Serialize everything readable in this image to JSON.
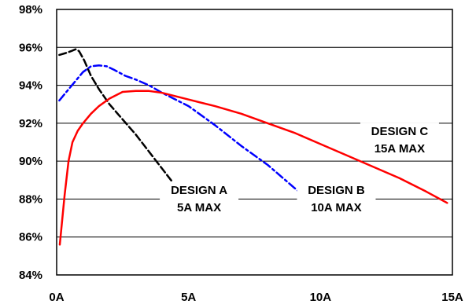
{
  "chart_data": {
    "type": "line",
    "title": "",
    "xlabel": "",
    "ylabel": "",
    "xlim": [
      0,
      15
    ],
    "ylim": [
      84,
      98
    ],
    "x_ticks": [
      0,
      5,
      10,
      15
    ],
    "x_tick_labels": [
      "0A",
      "5A",
      "10A",
      "15A"
    ],
    "y_ticks": [
      84,
      86,
      88,
      90,
      92,
      94,
      96,
      98
    ],
    "y_tick_labels": [
      "84%",
      "86%",
      "88%",
      "90%",
      "92%",
      "94%",
      "96%",
      "98%"
    ],
    "grid": "horizontal",
    "legend": "none",
    "series": [
      {
        "name": "DESIGN A",
        "color": "#000000",
        "style": "dashed",
        "points": [
          [
            0.1,
            95.6
          ],
          [
            0.35,
            95.7
          ],
          [
            0.55,
            95.8
          ],
          [
            0.72,
            95.9
          ],
          [
            0.85,
            95.8
          ],
          [
            1.05,
            95.3
          ],
          [
            1.3,
            94.5
          ],
          [
            1.6,
            93.8
          ],
          [
            2.0,
            93.0
          ],
          [
            2.5,
            92.2
          ],
          [
            3.0,
            91.4
          ],
          [
            3.5,
            90.5
          ],
          [
            4.0,
            89.6
          ],
          [
            4.5,
            88.7
          ],
          [
            4.8,
            88.2
          ],
          [
            5.0,
            88.0
          ]
        ]
      },
      {
        "name": "DESIGN B",
        "color": "#0000FF",
        "style": "dashdot",
        "points": [
          [
            0.1,
            93.2
          ],
          [
            0.4,
            93.7
          ],
          [
            0.7,
            94.2
          ],
          [
            1.0,
            94.7
          ],
          [
            1.3,
            95.0
          ],
          [
            1.6,
            95.05
          ],
          [
            1.9,
            95.0
          ],
          [
            2.2,
            94.8
          ],
          [
            2.6,
            94.5
          ],
          [
            3.0,
            94.3
          ],
          [
            3.5,
            94.0
          ],
          [
            4.0,
            93.6
          ],
          [
            5.0,
            92.9
          ],
          [
            6.0,
            91.9
          ],
          [
            7.0,
            90.8
          ],
          [
            8.0,
            89.8
          ],
          [
            9.0,
            88.6
          ],
          [
            9.5,
            88.0
          ],
          [
            9.8,
            87.5
          ]
        ]
      },
      {
        "name": "DESIGN C",
        "color": "#FF0000",
        "style": "solid",
        "points": [
          [
            0.12,
            85.6
          ],
          [
            0.3,
            88.2
          ],
          [
            0.45,
            90.0
          ],
          [
            0.6,
            91.0
          ],
          [
            0.8,
            91.6
          ],
          [
            1.0,
            92.0
          ],
          [
            1.3,
            92.5
          ],
          [
            1.6,
            92.9
          ],
          [
            2.0,
            93.3
          ],
          [
            2.5,
            93.65
          ],
          [
            3.0,
            93.7
          ],
          [
            3.5,
            93.7
          ],
          [
            4.0,
            93.6
          ],
          [
            5.0,
            93.25
          ],
          [
            6.0,
            92.9
          ],
          [
            7.0,
            92.5
          ],
          [
            8.0,
            92.0
          ],
          [
            9.0,
            91.5
          ],
          [
            10.0,
            90.9
          ],
          [
            11.0,
            90.3
          ],
          [
            12.0,
            89.7
          ],
          [
            13.0,
            89.1
          ],
          [
            14.0,
            88.4
          ],
          [
            14.8,
            87.8
          ]
        ]
      }
    ],
    "annotations": [
      {
        "series": "DESIGN A",
        "lines": [
          "DESIGN A",
          "5A MAX"
        ],
        "x": 5.4,
        "y": 88.1
      },
      {
        "series": "DESIGN B",
        "lines": [
          "DESIGN B",
          "10A MAX"
        ],
        "x": 10.6,
        "y": 88.1
      },
      {
        "series": "DESIGN C",
        "lines": [
          "DESIGN C",
          "15A MAX"
        ],
        "x": 13.0,
        "y": 91.2
      }
    ]
  }
}
